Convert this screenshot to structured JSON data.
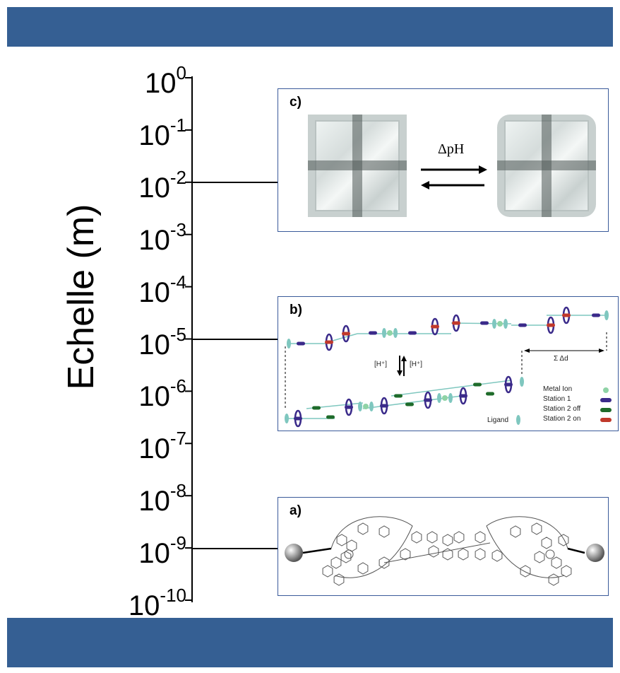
{
  "axis": {
    "title": "Echelle (m)",
    "scale": "log",
    "ticks": [
      {
        "base": "10",
        "exp": "0"
      },
      {
        "base": "10",
        "exp": "-1"
      },
      {
        "base": "10",
        "exp": "-2"
      },
      {
        "base": "10",
        "exp": "-3"
      },
      {
        "base": "10",
        "exp": "-4"
      },
      {
        "base": "10",
        "exp": "-5"
      },
      {
        "base": "10",
        "exp": "-6"
      },
      {
        "base": "10",
        "exp": "-7"
      },
      {
        "base": "10",
        "exp": "-8"
      },
      {
        "base": "10",
        "exp": "-9"
      },
      {
        "base": "10",
        "exp": "-10"
      }
    ]
  },
  "panels": {
    "c": {
      "label": "c)",
      "scale_value": "10^-2",
      "arrow_label": "ΔpH"
    },
    "b": {
      "label": "b)",
      "scale_value": "10^-5",
      "proton_left": "[H⁺]",
      "proton_right": "[H⁺]",
      "sum_label": "Σ Δd",
      "legend": [
        {
          "label": "Metal Ion",
          "symbol": "metal-ion"
        },
        {
          "label": "Station 1",
          "symbol": "station-1"
        },
        {
          "label": "Station 2 off",
          "symbol": "station-2-off"
        },
        {
          "label": "Station 2 on",
          "symbol": "station-2-on"
        }
      ],
      "ligand_label": "Ligand"
    },
    "a": {
      "label": "a)",
      "scale_value": "10^-9"
    }
  },
  "colors": {
    "banner": "#355f93",
    "panel_border": "#3a5a9a",
    "metal_ion": "#8fd3a6",
    "station_1": "#3a2a8a",
    "station_2_off": "#1e6b2a",
    "station_2_on": "#c0392b",
    "ligand": "#7fc7bf"
  }
}
